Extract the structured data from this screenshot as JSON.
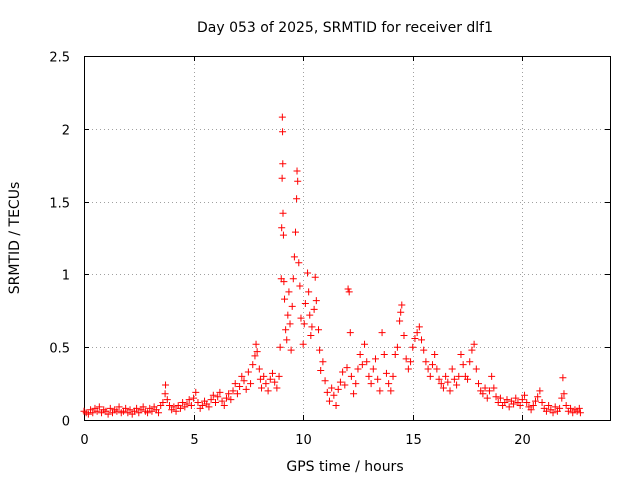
{
  "chart_data": {
    "type": "scatter",
    "title": "Day 053 of 2025, SRMTID for receiver dlf1",
    "xlabel": "GPS time / hours",
    "ylabel": "SRMTID / TECUs",
    "xlim": [
      0,
      24
    ],
    "ylim": [
      0,
      2.5
    ],
    "xticks": [
      0,
      5,
      10,
      15,
      20
    ],
    "xtick_labels": [
      "0",
      "5",
      "10",
      "15",
      "20"
    ],
    "yticks": [
      0,
      0.5,
      1,
      1.5,
      2,
      2.5
    ],
    "ytick_labels": [
      "0",
      "0.5",
      "1",
      "1.5",
      "2",
      "2.5"
    ],
    "grid": true,
    "marker": "+",
    "color": "#ff0000",
    "series": [
      {
        "name": "SRMTID",
        "points": [
          [
            0.0,
            0.06
          ],
          [
            0.1,
            0.05
          ],
          [
            0.2,
            0.04
          ],
          [
            0.3,
            0.07
          ],
          [
            0.4,
            0.05
          ],
          [
            0.5,
            0.08
          ],
          [
            0.6,
            0.06
          ],
          [
            0.7,
            0.09
          ],
          [
            0.8,
            0.05
          ],
          [
            0.9,
            0.07
          ],
          [
            1.0,
            0.06
          ],
          [
            1.1,
            0.04
          ],
          [
            1.2,
            0.08
          ],
          [
            1.3,
            0.05
          ],
          [
            1.4,
            0.07
          ],
          [
            1.5,
            0.06
          ],
          [
            1.6,
            0.09
          ],
          [
            1.7,
            0.05
          ],
          [
            1.8,
            0.06
          ],
          [
            1.9,
            0.08
          ],
          [
            2.0,
            0.05
          ],
          [
            2.1,
            0.07
          ],
          [
            2.2,
            0.04
          ],
          [
            2.3,
            0.06
          ],
          [
            2.4,
            0.08
          ],
          [
            2.5,
            0.05
          ],
          [
            2.6,
            0.07
          ],
          [
            2.7,
            0.09
          ],
          [
            2.8,
            0.06
          ],
          [
            2.9,
            0.05
          ],
          [
            3.0,
            0.08
          ],
          [
            3.1,
            0.06
          ],
          [
            3.2,
            0.09
          ],
          [
            3.3,
            0.07
          ],
          [
            3.4,
            0.05
          ],
          [
            3.5,
            0.1
          ],
          [
            3.6,
            0.12
          ],
          [
            3.7,
            0.18
          ],
          [
            3.72,
            0.24
          ],
          [
            3.8,
            0.14
          ],
          [
            3.9,
            0.1
          ],
          [
            4.0,
            0.07
          ],
          [
            4.1,
            0.09
          ],
          [
            4.2,
            0.06
          ],
          [
            4.3,
            0.1
          ],
          [
            4.4,
            0.08
          ],
          [
            4.5,
            0.12
          ],
          [
            4.6,
            0.09
          ],
          [
            4.7,
            0.11
          ],
          [
            4.8,
            0.14
          ],
          [
            4.9,
            0.1
          ],
          [
            5.0,
            0.15
          ],
          [
            5.1,
            0.19
          ],
          [
            5.2,
            0.12
          ],
          [
            5.3,
            0.08
          ],
          [
            5.4,
            0.1
          ],
          [
            5.5,
            0.13
          ],
          [
            5.6,
            0.11
          ],
          [
            5.7,
            0.09
          ],
          [
            5.8,
            0.14
          ],
          [
            5.9,
            0.17
          ],
          [
            6.0,
            0.12
          ],
          [
            6.1,
            0.16
          ],
          [
            6.2,
            0.19
          ],
          [
            6.3,
            0.13
          ],
          [
            6.4,
            0.1
          ],
          [
            6.5,
            0.15
          ],
          [
            6.6,
            0.18
          ],
          [
            6.7,
            0.14
          ],
          [
            6.8,
            0.2
          ],
          [
            6.9,
            0.25
          ],
          [
            7.0,
            0.18
          ],
          [
            7.1,
            0.23
          ],
          [
            7.2,
            0.3
          ],
          [
            7.3,
            0.27
          ],
          [
            7.4,
            0.21
          ],
          [
            7.5,
            0.33
          ],
          [
            7.6,
            0.25
          ],
          [
            7.7,
            0.38
          ],
          [
            7.8,
            0.44
          ],
          [
            7.85,
            0.52
          ],
          [
            7.9,
            0.47
          ],
          [
            8.0,
            0.35
          ],
          [
            8.05,
            0.28
          ],
          [
            8.1,
            0.22
          ],
          [
            8.2,
            0.3
          ],
          [
            8.3,
            0.25
          ],
          [
            8.4,
            0.2
          ],
          [
            8.5,
            0.28
          ],
          [
            8.6,
            0.32
          ],
          [
            8.7,
            0.26
          ],
          [
            8.8,
            0.22
          ],
          [
            8.9,
            0.3
          ],
          [
            8.95,
            0.5
          ],
          [
            9.0,
            0.97
          ],
          [
            9.02,
            1.32
          ],
          [
            9.04,
            1.66
          ],
          [
            9.05,
            2.08
          ],
          [
            9.06,
            1.98
          ],
          [
            9.07,
            1.76
          ],
          [
            9.08,
            1.42
          ],
          [
            9.1,
            1.27
          ],
          [
            9.12,
            0.95
          ],
          [
            9.15,
            0.83
          ],
          [
            9.2,
            0.62
          ],
          [
            9.25,
            0.55
          ],
          [
            9.3,
            0.72
          ],
          [
            9.35,
            0.88
          ],
          [
            9.4,
            0.66
          ],
          [
            9.45,
            0.48
          ],
          [
            9.5,
            0.78
          ],
          [
            9.55,
            0.97
          ],
          [
            9.6,
            1.12
          ],
          [
            9.65,
            1.29
          ],
          [
            9.7,
            1.52
          ],
          [
            9.72,
            1.71
          ],
          [
            9.75,
            1.64
          ],
          [
            9.8,
            1.08
          ],
          [
            9.85,
            0.92
          ],
          [
            9.9,
            0.7
          ],
          [
            10.0,
            0.52
          ],
          [
            10.05,
            0.66
          ],
          [
            10.1,
            0.8
          ],
          [
            10.2,
            1.01
          ],
          [
            10.25,
            0.88
          ],
          [
            10.3,
            0.72
          ],
          [
            10.35,
            0.58
          ],
          [
            10.4,
            0.64
          ],
          [
            10.5,
            0.76
          ],
          [
            10.55,
            0.98
          ],
          [
            10.6,
            0.82
          ],
          [
            10.7,
            0.62
          ],
          [
            10.75,
            0.48
          ],
          [
            10.8,
            0.34
          ],
          [
            10.9,
            0.4
          ],
          [
            11.0,
            0.27
          ],
          [
            11.1,
            0.19
          ],
          [
            11.2,
            0.13
          ],
          [
            11.3,
            0.22
          ],
          [
            11.4,
            0.17
          ],
          [
            11.5,
            0.1
          ],
          [
            11.6,
            0.21
          ],
          [
            11.7,
            0.26
          ],
          [
            11.8,
            0.33
          ],
          [
            11.9,
            0.24
          ],
          [
            12.0,
            0.36
          ],
          [
            12.05,
            0.9
          ],
          [
            12.1,
            0.88
          ],
          [
            12.15,
            0.6
          ],
          [
            12.2,
            0.3
          ],
          [
            12.3,
            0.18
          ],
          [
            12.4,
            0.25
          ],
          [
            12.5,
            0.35
          ],
          [
            12.6,
            0.45
          ],
          [
            12.7,
            0.38
          ],
          [
            12.8,
            0.52
          ],
          [
            12.9,
            0.4
          ],
          [
            13.0,
            0.3
          ],
          [
            13.1,
            0.25
          ],
          [
            13.2,
            0.35
          ],
          [
            13.3,
            0.42
          ],
          [
            13.4,
            0.28
          ],
          [
            13.5,
            0.2
          ],
          [
            13.6,
            0.6
          ],
          [
            13.7,
            0.45
          ],
          [
            13.8,
            0.32
          ],
          [
            13.9,
            0.25
          ],
          [
            14.0,
            0.2
          ],
          [
            14.1,
            0.3
          ],
          [
            14.2,
            0.45
          ],
          [
            14.3,
            0.5
          ],
          [
            14.4,
            0.68
          ],
          [
            14.45,
            0.74
          ],
          [
            14.5,
            0.79
          ],
          [
            14.6,
            0.58
          ],
          [
            14.7,
            0.42
          ],
          [
            14.8,
            0.35
          ],
          [
            14.9,
            0.4
          ],
          [
            15.0,
            0.5
          ],
          [
            15.1,
            0.56
          ],
          [
            15.2,
            0.6
          ],
          [
            15.3,
            0.64
          ],
          [
            15.4,
            0.55
          ],
          [
            15.5,
            0.48
          ],
          [
            15.6,
            0.4
          ],
          [
            15.7,
            0.35
          ],
          [
            15.8,
            0.3
          ],
          [
            15.9,
            0.38
          ],
          [
            16.0,
            0.45
          ],
          [
            16.1,
            0.35
          ],
          [
            16.2,
            0.28
          ],
          [
            16.3,
            0.25
          ],
          [
            16.4,
            0.22
          ],
          [
            16.5,
            0.3
          ],
          [
            16.6,
            0.26
          ],
          [
            16.7,
            0.2
          ],
          [
            16.8,
            0.35
          ],
          [
            16.9,
            0.28
          ],
          [
            17.0,
            0.24
          ],
          [
            17.1,
            0.3
          ],
          [
            17.2,
            0.45
          ],
          [
            17.3,
            0.38
          ],
          [
            17.4,
            0.3
          ],
          [
            17.5,
            0.28
          ],
          [
            17.6,
            0.4
          ],
          [
            17.7,
            0.48
          ],
          [
            17.8,
            0.52
          ],
          [
            17.9,
            0.35
          ],
          [
            18.0,
            0.25
          ],
          [
            18.1,
            0.2
          ],
          [
            18.2,
            0.18
          ],
          [
            18.3,
            0.22
          ],
          [
            18.4,
            0.15
          ],
          [
            18.5,
            0.2
          ],
          [
            18.6,
            0.3
          ],
          [
            18.7,
            0.22
          ],
          [
            18.8,
            0.16
          ],
          [
            18.9,
            0.12
          ],
          [
            19.0,
            0.15
          ],
          [
            19.1,
            0.1
          ],
          [
            19.2,
            0.12
          ],
          [
            19.3,
            0.14
          ],
          [
            19.4,
            0.09
          ],
          [
            19.5,
            0.13
          ],
          [
            19.6,
            0.11
          ],
          [
            19.7,
            0.15
          ],
          [
            19.8,
            0.12
          ],
          [
            19.9,
            0.1
          ],
          [
            20.0,
            0.14
          ],
          [
            20.1,
            0.17
          ],
          [
            20.2,
            0.12
          ],
          [
            20.3,
            0.09
          ],
          [
            20.4,
            0.07
          ],
          [
            20.5,
            0.1
          ],
          [
            20.6,
            0.13
          ],
          [
            20.7,
            0.16
          ],
          [
            20.8,
            0.2
          ],
          [
            20.9,
            0.12
          ],
          [
            21.0,
            0.08
          ],
          [
            21.1,
            0.06
          ],
          [
            21.2,
            0.1
          ],
          [
            21.3,
            0.07
          ],
          [
            21.4,
            0.05
          ],
          [
            21.5,
            0.09
          ],
          [
            21.6,
            0.06
          ],
          [
            21.7,
            0.08
          ],
          [
            21.8,
            0.15
          ],
          [
            21.85,
            0.29
          ],
          [
            21.9,
            0.18
          ],
          [
            22.0,
            0.1
          ],
          [
            22.1,
            0.06
          ],
          [
            22.2,
            0.08
          ],
          [
            22.3,
            0.05
          ],
          [
            22.4,
            0.07
          ],
          [
            22.5,
            0.06
          ],
          [
            22.6,
            0.08
          ],
          [
            22.65,
            0.05
          ]
        ]
      }
    ]
  }
}
